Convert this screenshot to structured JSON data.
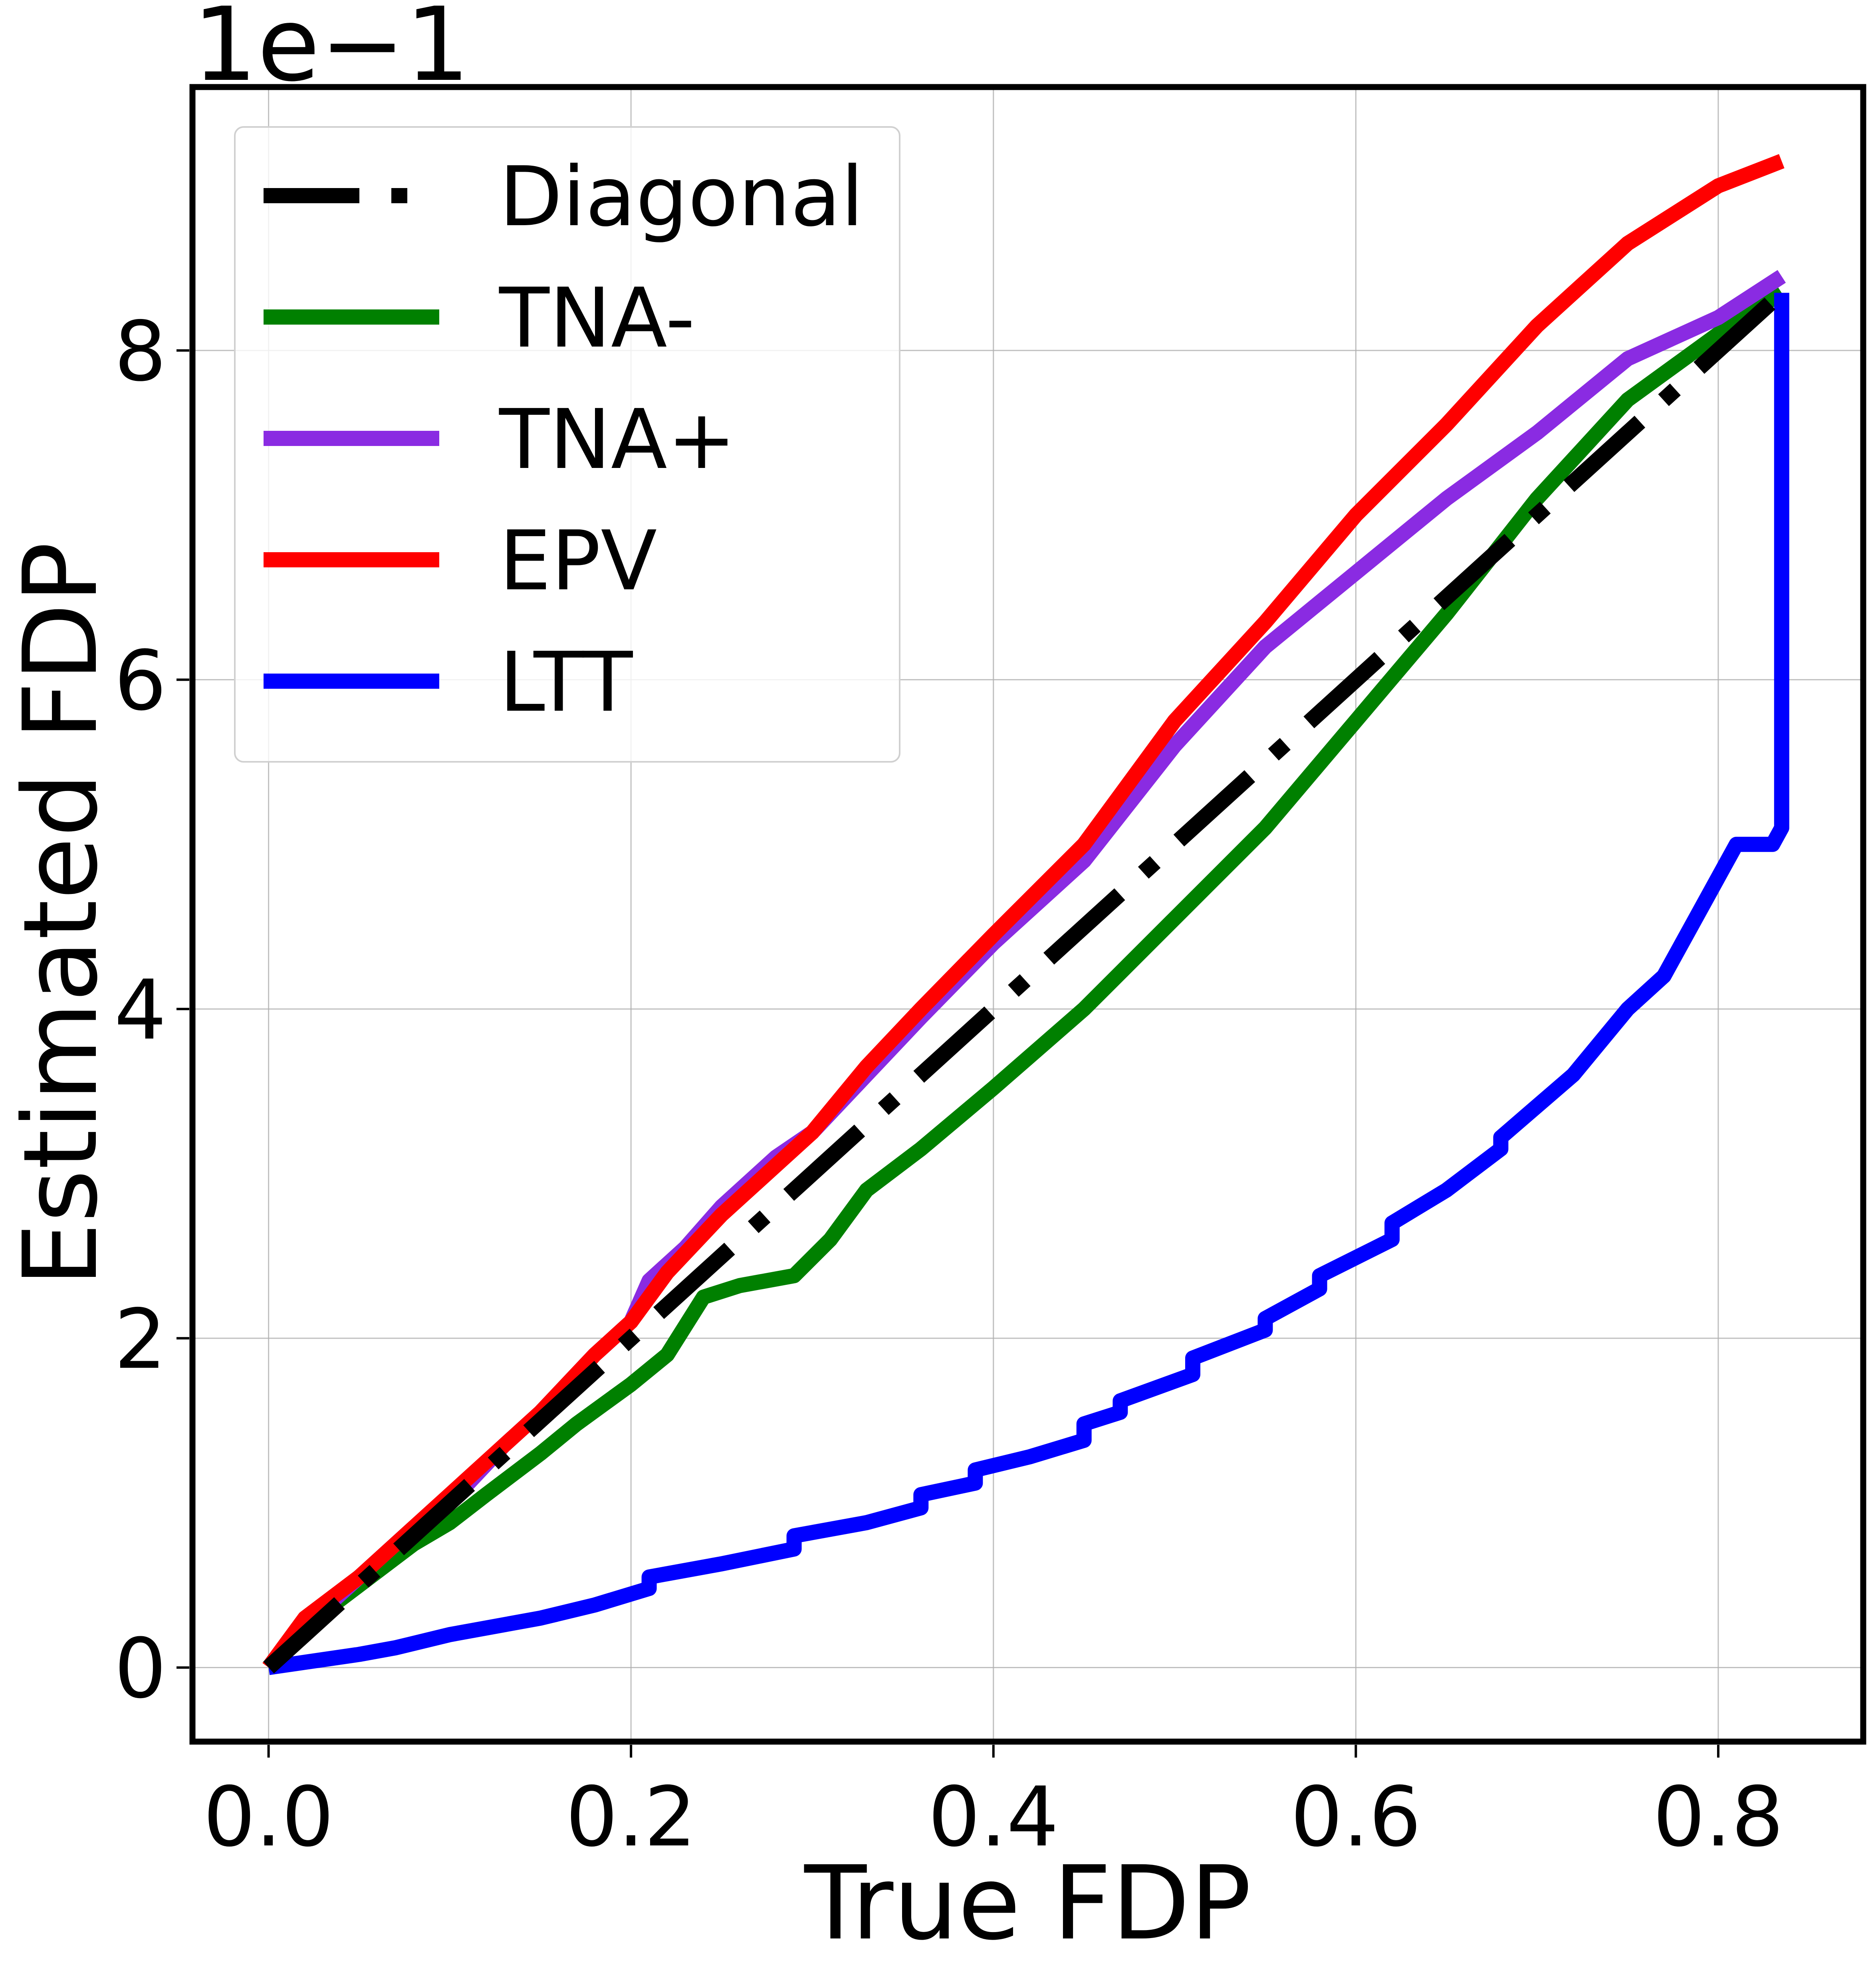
{
  "chart_data": {
    "type": "line",
    "title": "",
    "xlabel": "True FDP",
    "ylabel": "Estimated FDP",
    "y_offset_label": "1e−1",
    "xlim": [
      -0.042,
      0.88
    ],
    "ylim": [
      -0.045,
      0.96
    ],
    "x_ticks": [
      0.0,
      0.2,
      0.4,
      0.6,
      0.8
    ],
    "x_tick_labels": [
      "0.0",
      "0.2",
      "0.4",
      "0.6",
      "0.8"
    ],
    "y_ticks": [
      0.0,
      0.2,
      0.4,
      0.6,
      0.8
    ],
    "y_tick_labels": [
      "0",
      "2",
      "4",
      "6",
      "8"
    ],
    "grid": true,
    "legend_position": "top-left",
    "series": [
      {
        "name": "Diagonal",
        "color": "#000000",
        "style": "dashdot",
        "x": [
          0.0,
          0.835
        ],
        "y": [
          0.0,
          0.835
        ]
      },
      {
        "name": "TNA-",
        "color": "#008000",
        "style": "solid",
        "x": [
          0.0,
          0.02,
          0.05,
          0.08,
          0.1,
          0.12,
          0.15,
          0.17,
          0.2,
          0.22,
          0.24,
          0.26,
          0.29,
          0.31,
          0.33,
          0.36,
          0.4,
          0.45,
          0.5,
          0.55,
          0.6,
          0.65,
          0.7,
          0.75,
          0.8,
          0.835
        ],
        "y": [
          0.0,
          0.025,
          0.05,
          0.075,
          0.088,
          0.105,
          0.13,
          0.148,
          0.172,
          0.19,
          0.225,
          0.232,
          0.238,
          0.26,
          0.29,
          0.315,
          0.352,
          0.4,
          0.455,
          0.51,
          0.575,
          0.64,
          0.71,
          0.77,
          0.81,
          0.835
        ]
      },
      {
        "name": "TNA+",
        "color": "#8a2be2",
        "style": "solid",
        "x": [
          0.0,
          0.02,
          0.05,
          0.08,
          0.1,
          0.13,
          0.15,
          0.18,
          0.2,
          0.21,
          0.23,
          0.25,
          0.28,
          0.3,
          0.33,
          0.36,
          0.4,
          0.45,
          0.5,
          0.55,
          0.6,
          0.65,
          0.7,
          0.75,
          0.8,
          0.835
        ],
        "y": [
          0.0,
          0.025,
          0.055,
          0.085,
          0.1,
          0.135,
          0.155,
          0.19,
          0.21,
          0.235,
          0.255,
          0.28,
          0.31,
          0.325,
          0.36,
          0.395,
          0.44,
          0.49,
          0.56,
          0.62,
          0.665,
          0.71,
          0.75,
          0.795,
          0.82,
          0.845
        ]
      },
      {
        "name": "EPV",
        "color": "#ff0000",
        "style": "solid",
        "x": [
          0.0,
          0.02,
          0.05,
          0.08,
          0.1,
          0.13,
          0.15,
          0.18,
          0.2,
          0.22,
          0.25,
          0.28,
          0.3,
          0.33,
          0.36,
          0.4,
          0.45,
          0.5,
          0.55,
          0.6,
          0.65,
          0.7,
          0.75,
          0.8,
          0.835
        ],
        "y": [
          0.0,
          0.03,
          0.055,
          0.085,
          0.105,
          0.135,
          0.155,
          0.19,
          0.21,
          0.24,
          0.275,
          0.305,
          0.325,
          0.365,
          0.4,
          0.445,
          0.5,
          0.575,
          0.635,
          0.7,
          0.755,
          0.815,
          0.865,
          0.9,
          0.915
        ]
      },
      {
        "name": "LTT",
        "color": "#0000ff",
        "style": "solid",
        "x": [
          0.0,
          0.05,
          0.07,
          0.1,
          0.15,
          0.18,
          0.21,
          0.21,
          0.25,
          0.29,
          0.29,
          0.33,
          0.36,
          0.36,
          0.39,
          0.39,
          0.42,
          0.45,
          0.45,
          0.47,
          0.47,
          0.51,
          0.51,
          0.55,
          0.55,
          0.58,
          0.58,
          0.62,
          0.62,
          0.65,
          0.68,
          0.68,
          0.72,
          0.75,
          0.77,
          0.79,
          0.81,
          0.83,
          0.835,
          0.835
        ],
        "y": [
          0.0,
          0.008,
          0.012,
          0.02,
          0.03,
          0.038,
          0.048,
          0.055,
          0.063,
          0.072,
          0.08,
          0.088,
          0.097,
          0.105,
          0.112,
          0.12,
          0.128,
          0.138,
          0.148,
          0.155,
          0.162,
          0.178,
          0.188,
          0.205,
          0.212,
          0.23,
          0.238,
          0.26,
          0.27,
          0.29,
          0.315,
          0.322,
          0.36,
          0.4,
          0.42,
          0.46,
          0.5,
          0.5,
          0.51,
          0.835
        ]
      }
    ]
  }
}
